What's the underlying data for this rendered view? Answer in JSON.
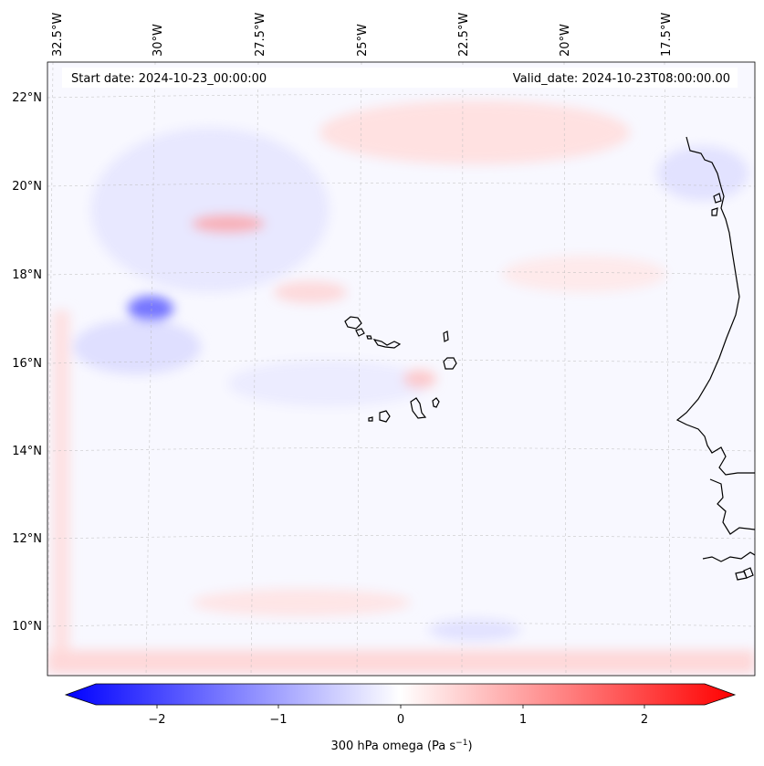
{
  "header": {
    "start_date": "Start date: 2024-10-23_00:00:00",
    "valid_date": "Valid_date: 2024-10-23T08:00:00.00"
  },
  "axes": {
    "lon_ticks": [
      "32.5°W",
      "30°W",
      "27.5°W",
      "25°W",
      "22.5°W",
      "20°W",
      "17.5°W"
    ],
    "lat_ticks": [
      "22°N",
      "20°N",
      "18°N",
      "16°N",
      "14°N",
      "12°N",
      "10°N"
    ]
  },
  "colorbar": {
    "label": "300 hPa omega (Pa s",
    "label_exponent": "−1",
    "label_close": ")",
    "ticks": [
      "−2",
      "−1",
      "0",
      "1",
      "2"
    ],
    "min": -2.6,
    "max": 2.6,
    "colors": {
      "negative": "#0000ff",
      "zero": "#ffffff",
      "positive": "#ff0000"
    }
  },
  "chart_data": {
    "type": "heatmap",
    "title": "",
    "variable": "300 hPa omega",
    "units": "Pa s^-1",
    "lon_range": [
      -33,
      -15.4
    ],
    "lat_range": [
      8.9,
      22.8
    ],
    "clim": [
      -2.6,
      2.6
    ],
    "start_date": "2024-10-23_00:00:00",
    "valid_date": "2024-10-23T08:00:00.00"
  }
}
